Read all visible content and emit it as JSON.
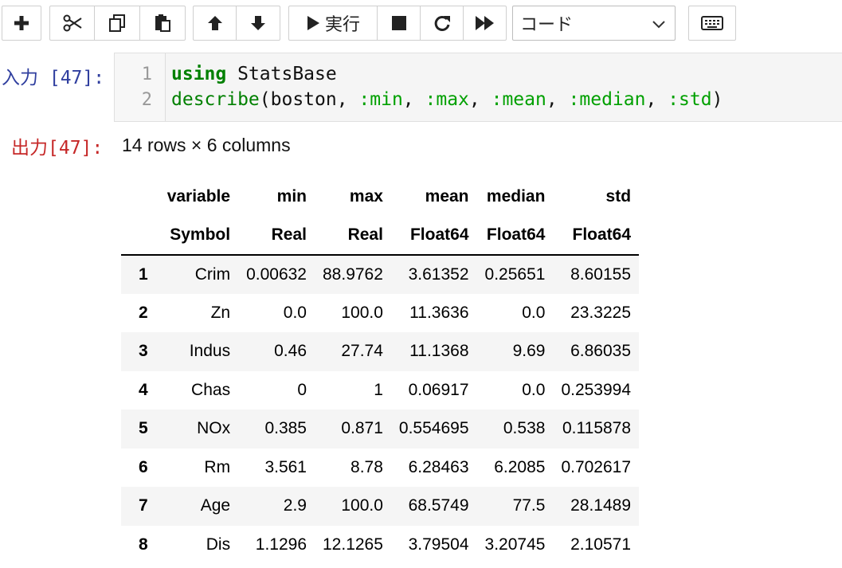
{
  "toolbar": {
    "buttons": [
      "insert-cell",
      "cut",
      "copy",
      "paste",
      "move-up",
      "move-down"
    ],
    "run_label": "実行",
    "cell_type": "コード",
    "icons": [
      "plus-icon",
      "scissors-icon",
      "copy-icon",
      "paste-icon",
      "arrow-up-icon",
      "arrow-down-icon",
      "play-icon",
      "stop-icon",
      "restart-icon",
      "fast-forward-icon",
      "chevron-down-icon",
      "keyboard-icon"
    ]
  },
  "input_cell": {
    "prompt_label": "入力",
    "prompt_number": "[47]:",
    "line_numbers": [
      "1",
      "2"
    ],
    "line1": {
      "keyword": "using",
      "rest": " StatsBase"
    },
    "line2": {
      "fn": "describe",
      "open": "(boston, ",
      "sym1": ":min",
      "sep1": ", ",
      "sym2": ":max",
      "sep2": ", ",
      "sym3": ":mean",
      "sep3": ", ",
      "sym4": ":median",
      "sep4": ", ",
      "sym5": ":std",
      "close": ")"
    }
  },
  "output_cell": {
    "prompt_label": "出力",
    "prompt_number": "[47]:",
    "summary": "14 rows × 6 columns",
    "table": {
      "headers": [
        "variable",
        "min",
        "max",
        "mean",
        "median",
        "std"
      ],
      "types": [
        "Symbol",
        "Real",
        "Real",
        "Float64",
        "Float64",
        "Float64"
      ],
      "rows": [
        [
          "1",
          "Crim",
          "0.00632",
          "88.9762",
          "3.61352",
          "0.25651",
          "8.60155"
        ],
        [
          "2",
          "Zn",
          "0.0",
          "100.0",
          "11.3636",
          "0.0",
          "23.3225"
        ],
        [
          "3",
          "Indus",
          "0.46",
          "27.74",
          "11.1368",
          "9.69",
          "6.86035"
        ],
        [
          "4",
          "Chas",
          "0",
          "1",
          "0.06917",
          "0.0",
          "0.253994"
        ],
        [
          "5",
          "NOx",
          "0.385",
          "0.871",
          "0.554695",
          "0.538",
          "0.115878"
        ],
        [
          "6",
          "Rm",
          "3.561",
          "8.78",
          "6.28463",
          "6.2085",
          "0.702617"
        ],
        [
          "7",
          "Age",
          "2.9",
          "100.0",
          "68.5749",
          "77.5",
          "28.1489"
        ],
        [
          "8",
          "Dis",
          "1.1296",
          "12.1265",
          "3.79504",
          "3.20745",
          "2.10571"
        ]
      ]
    }
  }
}
